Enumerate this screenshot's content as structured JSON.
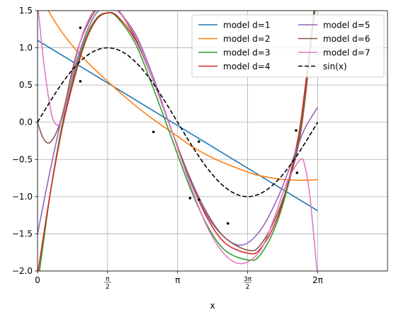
{
  "chart_data": {
    "type": "line",
    "title": "",
    "xlabel": "x",
    "ylabel": "",
    "xlim": [
      0,
      7.85
    ],
    "ylim": [
      -2.0,
      1.5
    ],
    "grid": true,
    "legend_placement": "top-right",
    "legend_columns": 2,
    "x_ticks": [
      {
        "value": 0,
        "label": "0"
      },
      {
        "value": 1.5708,
        "num": "π",
        "den": "2"
      },
      {
        "value": 3.1416,
        "label": "π"
      },
      {
        "value": 4.7124,
        "num": "3π",
        "den": "2"
      },
      {
        "value": 6.2832,
        "label": "2π"
      }
    ],
    "y_ticks": [
      {
        "value": -2.0,
        "label": "−2.0"
      },
      {
        "value": -1.5,
        "label": "−1.5"
      },
      {
        "value": -1.0,
        "label": "−1.0"
      },
      {
        "value": -0.5,
        "label": "−0.5"
      },
      {
        "value": 0.0,
        "label": "0.0"
      },
      {
        "value": 0.5,
        "label": "0.5"
      },
      {
        "value": 1.0,
        "label": "1.0"
      },
      {
        "value": 1.5,
        "label": "1.5"
      }
    ],
    "scatter_points": [
      {
        "x": 0.96,
        "y": 1.27
      },
      {
        "x": 0.96,
        "y": 0.55
      },
      {
        "x": 2.6,
        "y": -0.13
      },
      {
        "x": 3.42,
        "y": -1.02
      },
      {
        "x": 3.62,
        "y": -1.04
      },
      {
        "x": 3.62,
        "y": -0.26
      },
      {
        "x": 4.27,
        "y": -1.36
      },
      {
        "x": 5.8,
        "y": -0.11
      },
      {
        "x": 5.82,
        "y": -0.68
      }
    ],
    "series": [
      {
        "name": "model d=1",
        "color": "#1f77b4",
        "dash": false,
        "x": [
          0,
          6.2832
        ],
        "y": [
          1.1,
          -1.19
        ]
      },
      {
        "name": "model d=2",
        "color": "#ff7f0e",
        "dash": false,
        "x": [
          0,
          0.5,
          1.0,
          1.5708,
          2.0,
          2.5,
          3.1416,
          3.5,
          4.0,
          4.7124,
          5.0,
          5.5,
          6.0,
          6.2832
        ],
        "y": [
          1.75,
          1.25,
          0.88,
          0.55,
          0.32,
          0.08,
          -0.19,
          -0.34,
          -0.5,
          -0.67,
          -0.72,
          -0.77,
          -0.78,
          -0.77
        ]
      },
      {
        "name": "model d=3",
        "color": "#2ca02c",
        "dash": false,
        "x": [
          0,
          0.3,
          0.6,
          1.0,
          1.3,
          1.5708,
          1.8,
          2.2,
          2.6,
          3.0,
          3.4,
          3.8,
          4.2,
          4.7124,
          5.0,
          5.4,
          5.8,
          6.0,
          6.2832
        ],
        "y": [
          -2.2,
          -0.9,
          0.1,
          1.0,
          1.38,
          1.47,
          1.4,
          1.05,
          0.45,
          -0.2,
          -0.85,
          -1.38,
          -1.72,
          -1.85,
          -1.78,
          -1.3,
          -0.4,
          0.4,
          1.8
        ]
      },
      {
        "name": "model d=4",
        "color": "#d62728",
        "dash": false,
        "x": [
          0,
          0.3,
          0.6,
          1.0,
          1.3,
          1.5708,
          1.8,
          2.2,
          2.6,
          3.0,
          3.4,
          3.8,
          4.2,
          4.7124,
          5.0,
          5.4,
          5.8,
          6.0,
          6.2
        ],
        "y": [
          -2.05,
          -0.9,
          0.05,
          0.95,
          1.36,
          1.47,
          1.42,
          1.1,
          0.55,
          -0.1,
          -0.75,
          -1.28,
          -1.62,
          -1.76,
          -1.7,
          -1.25,
          -0.35,
          0.45,
          1.5
        ]
      },
      {
        "name": "model d=5",
        "color": "#9467bd",
        "dash": false,
        "x": [
          0,
          0.3,
          0.6,
          1.0,
          1.3,
          1.5708,
          1.8,
          2.2,
          2.6,
          3.0,
          3.4,
          3.8,
          4.2,
          4.6,
          5.0,
          5.4,
          5.8,
          6.0,
          6.2832
        ],
        "y": [
          -1.5,
          -0.6,
          0.2,
          1.05,
          1.45,
          1.56,
          1.5,
          1.18,
          0.6,
          -0.1,
          -0.75,
          -1.25,
          -1.55,
          -1.65,
          -1.45,
          -1.0,
          -0.38,
          -0.08,
          0.2
        ]
      },
      {
        "name": "model d=6",
        "color": "#8c564b",
        "dash": false,
        "x": [
          0,
          0.1,
          0.2,
          0.3,
          0.45,
          0.6,
          0.8,
          1.0,
          1.3,
          1.5708,
          1.8,
          2.2,
          2.6,
          3.0,
          3.4,
          3.8,
          4.2,
          4.7124,
          5.0,
          5.4,
          5.8,
          6.0,
          6.2
        ],
        "y": [
          0.0,
          -0.18,
          -0.27,
          -0.26,
          -0.1,
          0.2,
          0.75,
          1.15,
          1.5,
          1.6,
          1.52,
          1.12,
          0.55,
          -0.1,
          -0.72,
          -1.22,
          -1.55,
          -1.72,
          -1.65,
          -1.2,
          -0.45,
          0.3,
          1.5
        ]
      },
      {
        "name": "model d=7",
        "color": "#e377c2",
        "dash": false,
        "x": [
          0,
          0.15,
          0.3,
          0.4,
          0.5,
          0.6,
          0.75,
          0.9,
          1.05,
          1.3,
          1.5708,
          1.8,
          2.2,
          2.6,
          3.0,
          3.4,
          3.8,
          4.2,
          4.6,
          5.0,
          5.3,
          5.6,
          5.9,
          6.0,
          6.1,
          6.2,
          6.2832
        ],
        "y": [
          1.6,
          0.75,
          0.15,
          -0.02,
          -0.02,
          0.15,
          0.55,
          0.95,
          1.25,
          1.53,
          1.6,
          1.52,
          1.15,
          0.55,
          -0.1,
          -0.8,
          -1.4,
          -1.78,
          -1.9,
          -1.72,
          -1.3,
          -0.8,
          -0.5,
          -0.6,
          -0.95,
          -1.55,
          -2.1
        ]
      },
      {
        "name": "sin(x)",
        "color": "#000000",
        "dash": true,
        "fn": "sin",
        "x_from": 0,
        "x_to": 6.2832
      }
    ]
  }
}
